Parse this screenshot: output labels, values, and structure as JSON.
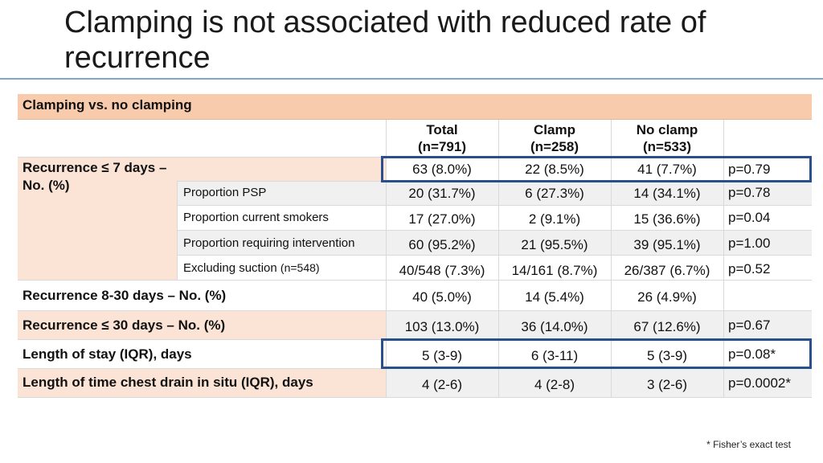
{
  "slide": {
    "title": "Clamping is not associated with reduced rate of recurrence",
    "footnote": "* Fisher’s exact test"
  },
  "table": {
    "caption": "Clamping vs. no clamping",
    "columns": [
      {
        "line1": "Total",
        "line2": "(n=791)"
      },
      {
        "line1": "Clamp",
        "line2": "(n=258)"
      },
      {
        "line1": "No clamp",
        "line2": "(n=533)"
      }
    ],
    "rec7": {
      "label": "Recurrence ≤ 7 days – No. (%)",
      "main": {
        "total": "63 (8.0%)",
        "clamp": "22 (8.5%)",
        "noclamp": "41 (7.7%)",
        "p": "p=0.79"
      },
      "subrows": [
        {
          "label": "Proportion PSP",
          "total": "20 (31.7%)",
          "clamp": "6 (27.3%)",
          "noclamp": "14 (34.1%)",
          "p": "p=0.78"
        },
        {
          "label": "Proportion current smokers",
          "total": "17 (27.0%)",
          "clamp": "2 (9.1%)",
          "noclamp": "15 (36.6%)",
          "p": "p=0.04"
        },
        {
          "label": "Proportion requiring intervention",
          "total": "60 (95.2%)",
          "clamp": "21 (95.5%)",
          "noclamp": "39 (95.1%)",
          "p": "p=1.00"
        },
        {
          "label": "Excluding suction",
          "label_extra": "(n=548)",
          "total": "40/548 (7.3%)",
          "clamp": "14/161 (8.7%)",
          "noclamp": "26/387 (6.7%)",
          "p": "p=0.52"
        }
      ]
    },
    "rows": [
      {
        "label": "Recurrence 8-30 days – No. (%)",
        "total": "40 (5.0%)",
        "clamp": "14 (5.4%)",
        "noclamp": "26 (4.9%)",
        "p": ""
      },
      {
        "label": "Recurrence ≤ 30 days – No. (%)",
        "total": "103 (13.0%)",
        "clamp": "36 (14.0%)",
        "noclamp": "67 (12.6%)",
        "p": "p=0.67"
      },
      {
        "label": "Length of stay (IQR), days",
        "total": "5 (3-9)",
        "clamp": "6 (3-11)",
        "noclamp": "5 (3-9)",
        "p": "p=0.08*"
      },
      {
        "label": "Length of time chest drain in situ (IQR), days",
        "total": "4 (2-6)",
        "clamp": "4 (2-8)",
        "noclamp": "3 (2-6)",
        "p": "p=0.0002*"
      }
    ]
  }
}
